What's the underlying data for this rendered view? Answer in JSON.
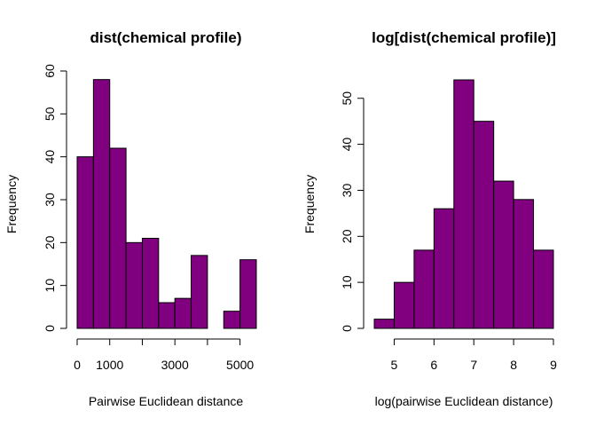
{
  "chart_data": [
    {
      "type": "bar",
      "subtype": "histogram",
      "title": "dist(chemical profile)",
      "xlabel": "Pairwise Euclidean distance",
      "ylabel": "Frequency",
      "bin_edges": [
        0,
        500,
        1000,
        1500,
        2000,
        2500,
        3000,
        3500,
        4000,
        4500,
        5000,
        5500
      ],
      "values": [
        40,
        58,
        42,
        20,
        21,
        6,
        7,
        17,
        0,
        4,
        16
      ],
      "xlim": [
        0,
        5500
      ],
      "ylim": [
        0,
        60
      ],
      "xticks": [
        0,
        1000,
        2000,
        3000,
        4000,
        5000
      ],
      "xtick_labels": [
        "0",
        "1000",
        "",
        "3000",
        "",
        "5000"
      ],
      "yticks": [
        0,
        10,
        20,
        30,
        40,
        50,
        60
      ],
      "ytick_labels": [
        "0",
        "10",
        "20",
        "30",
        "40",
        "50",
        "60"
      ],
      "bar_color": "#800080",
      "grid": false
    },
    {
      "type": "bar",
      "subtype": "histogram",
      "title": "log[dist(chemical profile)]",
      "xlabel": "log(pairwise Euclidean distance)",
      "ylabel": "Frequency",
      "bin_edges": [
        4.5,
        5,
        5.5,
        6,
        6.5,
        7,
        7.5,
        8,
        8.5,
        9
      ],
      "values": [
        2,
        10,
        17,
        26,
        54,
        45,
        32,
        28,
        17
      ],
      "xlim": [
        4.5,
        9
      ],
      "ylim": [
        0,
        54
      ],
      "xticks": [
        5,
        6,
        7,
        8,
        9
      ],
      "xtick_labels": [
        "5",
        "6",
        "7",
        "8",
        "9"
      ],
      "yticks": [
        0,
        10,
        20,
        30,
        40,
        50
      ],
      "ytick_labels": [
        "0",
        "10",
        "20",
        "30",
        "40",
        "50"
      ],
      "bar_color": "#800080",
      "grid": false
    }
  ]
}
